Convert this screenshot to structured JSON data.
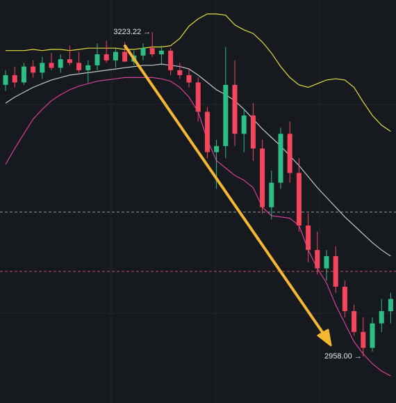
{
  "chart_data": {
    "type": "candlestick",
    "high_label": "3223.22 →",
    "low_label": "2958.00 →",
    "ylim": [
      2919.9,
      3249.4
    ],
    "up_color": "#2ebd85",
    "down_color": "#f6465d",
    "candles": [
      [
        3180,
        3192,
        3175,
        3188
      ],
      [
        3188,
        3195,
        3178,
        3182
      ],
      [
        3182,
        3198,
        3180,
        3195
      ],
      [
        3195,
        3200,
        3186,
        3190
      ],
      [
        3190,
        3203,
        3185,
        3198
      ],
      [
        3198,
        3206,
        3192,
        3194
      ],
      [
        3194,
        3205,
        3190,
        3201
      ],
      [
        3201,
        3212,
        3196,
        3198
      ],
      [
        3198,
        3207,
        3190,
        3192
      ],
      [
        3192,
        3200,
        3182,
        3196
      ],
      [
        3196,
        3214,
        3192,
        3205
      ],
      [
        3205,
        3216,
        3198,
        3200
      ],
      [
        3200,
        3210,
        3194,
        3207
      ],
      [
        3207,
        3215,
        3200,
        3199
      ],
      [
        3199,
        3208,
        3196,
        3204
      ],
      [
        3204,
        3214,
        3200,
        3210
      ],
      [
        3210,
        3223.22,
        3203,
        3205
      ],
      [
        3205,
        3212,
        3196,
        3208
      ],
      [
        3208,
        3210,
        3188,
        3192
      ],
      [
        3192,
        3198,
        3185,
        3188
      ],
      [
        3188,
        3193,
        3178,
        3182
      ],
      [
        3182,
        3186,
        3150,
        3158
      ],
      [
        3158,
        3162,
        3120,
        3125
      ],
      [
        3125,
        3135,
        3095,
        3130
      ],
      [
        3130,
        3211,
        3120,
        3180
      ],
      [
        3180,
        3200,
        3130,
        3140
      ],
      [
        3140,
        3160,
        3125,
        3155
      ],
      [
        3155,
        3165,
        3118,
        3128
      ],
      [
        3128,
        3135,
        3075,
        3080
      ],
      [
        3080,
        3110,
        3070,
        3100
      ],
      [
        3100,
        3145,
        3095,
        3140
      ],
      [
        3140,
        3150,
        3100,
        3108
      ],
      [
        3108,
        3120,
        3060,
        3065
      ],
      [
        3065,
        3075,
        3035,
        3045
      ],
      [
        3045,
        3060,
        3025,
        3030
      ],
      [
        3030,
        3045,
        3020,
        3040
      ],
      [
        3040,
        3048,
        3010,
        3015
      ],
      [
        3015,
        3020,
        2990,
        2995
      ],
      [
        2995,
        3000,
        2975,
        2978
      ],
      [
        2978,
        2990,
        2958,
        2965
      ],
      [
        2965,
        2990,
        2962,
        2985
      ],
      [
        2985,
        3005,
        2978,
        2995
      ],
      [
        2995,
        3010,
        2985,
        3005
      ]
    ],
    "series": [
      {
        "name": "upper",
        "color": "#e8dc3c",
        "values": [
          3208,
          3208,
          3208,
          3209,
          3208,
          3209,
          3209,
          3208,
          3209,
          3210,
          3210,
          3210,
          3210,
          3209,
          3209,
          3210,
          3211,
          3211,
          3212,
          3218,
          3228,
          3234,
          3238,
          3238,
          3237,
          3229,
          3225,
          3222,
          3215,
          3206,
          3195,
          3186,
          3180,
          3178,
          3181,
          3184,
          3185,
          3184,
          3178,
          3166,
          3155,
          3147,
          3142
        ]
      },
      {
        "name": "middle",
        "color": "#c8c8c8",
        "values": [
          3165,
          3170,
          3174,
          3178,
          3181,
          3184,
          3186,
          3188,
          3189,
          3190,
          3191,
          3192,
          3193,
          3194,
          3195,
          3196,
          3196,
          3197,
          3196,
          3195,
          3193,
          3188,
          3182,
          3176,
          3172,
          3167,
          3160,
          3152,
          3144,
          3137,
          3130,
          3122,
          3114,
          3105,
          3096,
          3088,
          3080,
          3072,
          3065,
          3058,
          3051,
          3045,
          3040
        ]
      },
      {
        "name": "lower",
        "color": "#d6409f",
        "values": [
          3115,
          3128,
          3140,
          3152,
          3160,
          3167,
          3172,
          3176,
          3179,
          3181,
          3183,
          3184,
          3185,
          3186,
          3186,
          3186,
          3186,
          3185,
          3183,
          3178,
          3170,
          3158,
          3135,
          3118,
          3112,
          3106,
          3102,
          3096,
          3080,
          3073,
          3072,
          3071,
          3065,
          3045,
          3030,
          3018,
          3000,
          2985,
          2970,
          2960,
          2952,
          2946,
          2942
        ]
      }
    ],
    "price_lines": [
      {
        "value": 3076,
        "color": "#9a9a9a"
      },
      {
        "value": 3027.5,
        "color": "#c0505a"
      }
    ]
  }
}
